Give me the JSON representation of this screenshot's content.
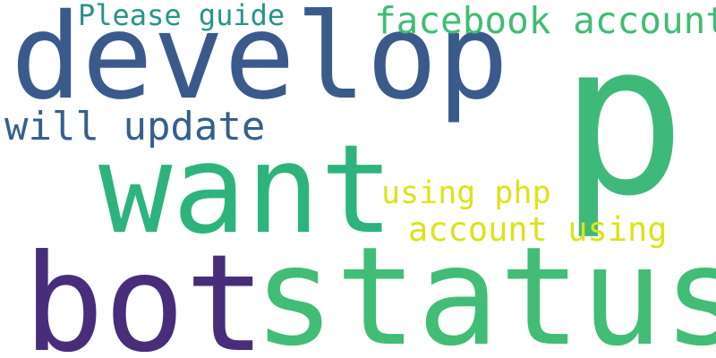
{
  "words": [
    {
      "key": "develop",
      "text": "develop",
      "color": "#3b5a8c"
    },
    {
      "key": "p",
      "text": "p",
      "color": "#3fb97a"
    },
    {
      "key": "want",
      "text": "want",
      "color": "#2db47d"
    },
    {
      "key": "bot",
      "text": "bot",
      "color": "#472d7b"
    },
    {
      "key": "status",
      "text": "status",
      "color": "#41bd76"
    },
    {
      "key": "please",
      "text": "Please guide",
      "color": "#27938a"
    },
    {
      "key": "facebook",
      "text": "facebook account",
      "color": "#40bd72"
    },
    {
      "key": "update",
      "text": "will update",
      "color": "#355f8d"
    },
    {
      "key": "php",
      "text": "using php",
      "color": "#dde318"
    },
    {
      "key": "account",
      "text": "account using",
      "color": "#dce319"
    }
  ]
}
